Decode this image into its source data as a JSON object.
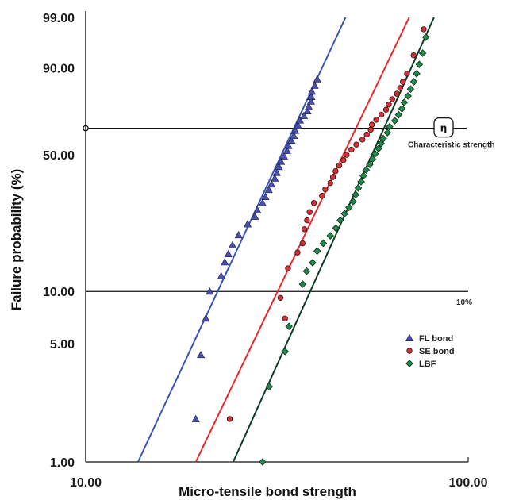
{
  "chart_data": {
    "type": "scatter",
    "title": "",
    "xlabel": "Micro-tensile bond strength",
    "ylabel": "Failure probability (%)",
    "x_scale": "log",
    "y_scale": "weibull",
    "xlim": [
      10,
      100
    ],
    "ylim": [
      1,
      99
    ],
    "x_ticks": [
      "10.00",
      "100.00"
    ],
    "y_ticks": [
      {
        "value": 99,
        "label": "99.00"
      },
      {
        "value": 90,
        "label": "90.00"
      },
      {
        "value": 50,
        "label": "50.00"
      },
      {
        "value": 10,
        "label": "10.00"
      },
      {
        "value": 5,
        "label": "5.00"
      },
      {
        "value": 1,
        "label": "1.00"
      }
    ],
    "reference_lines": [
      {
        "y": 63.2,
        "label": "Characteristic strength",
        "symbol": "η"
      },
      {
        "y": 10,
        "label": "10%"
      },
      {
        "y": 1,
        "label": ""
      }
    ],
    "legend_position": "right",
    "series": [
      {
        "name": "FL bond",
        "marker": "triangle",
        "color": "#4a4fa8",
        "line_color": "#3a56b0",
        "fit": {
          "x": [
            13.7,
            47.8
          ],
          "y": [
            1,
            99
          ]
        },
        "points": [
          [
            19.4,
            1.8
          ],
          [
            20.0,
            4.3
          ],
          [
            20.6,
            7.0
          ],
          [
            21.1,
            10.0
          ],
          [
            22.6,
            12.2
          ],
          [
            23.1,
            14.6
          ],
          [
            23.6,
            16.2
          ],
          [
            24.2,
            18.1
          ],
          [
            25.1,
            20.5
          ],
          [
            26.5,
            23.4
          ],
          [
            27.7,
            25.6
          ],
          [
            28.1,
            27.6
          ],
          [
            29.0,
            30.0
          ],
          [
            29.5,
            32.2
          ],
          [
            30.1,
            34.8
          ],
          [
            30.6,
            37.0
          ],
          [
            31.2,
            39.4
          ],
          [
            31.6,
            41.8
          ],
          [
            32.0,
            44.4
          ],
          [
            32.4,
            46.8
          ],
          [
            33.0,
            49.3
          ],
          [
            33.6,
            52.0
          ],
          [
            33.9,
            54.4
          ],
          [
            34.5,
            57.0
          ],
          [
            35.0,
            59.4
          ],
          [
            35.3,
            62.0
          ],
          [
            35.9,
            64.6
          ],
          [
            36.3,
            67.2
          ],
          [
            37.2,
            69.5
          ],
          [
            38.0,
            71.8
          ],
          [
            38.3,
            74.0
          ],
          [
            38.8,
            76.5
          ],
          [
            38.9,
            78.6
          ],
          [
            39.0,
            81.0
          ],
          [
            39.7,
            83.5
          ],
          [
            40.3,
            86.0
          ]
        ]
      },
      {
        "name": "SE bond",
        "marker": "circle",
        "color": "#d0343a",
        "line_color": "#e8282d",
        "fit": {
          "x": [
            19.4,
            70.1
          ],
          "y": [
            1,
            99
          ]
        },
        "points": [
          [
            23.8,
            1.8
          ],
          [
            32.3,
            9.2
          ],
          [
            33.2,
            7.0
          ],
          [
            33.8,
            13.5
          ],
          [
            35.8,
            16.5
          ],
          [
            36.9,
            18.5
          ],
          [
            37.3,
            22.0
          ],
          [
            37.9,
            24.5
          ],
          [
            38.5,
            27.0
          ],
          [
            39.5,
            30.0
          ],
          [
            41.5,
            32.6
          ],
          [
            42.3,
            35.0
          ],
          [
            43.6,
            37.5
          ],
          [
            44.3,
            40.0
          ],
          [
            45.0,
            42.5
          ],
          [
            46.0,
            45.0
          ],
          [
            47.2,
            47.5
          ],
          [
            48.1,
            50.0
          ],
          [
            49.5,
            52.5
          ],
          [
            51.0,
            55.0
          ],
          [
            52.9,
            57.5
          ],
          [
            54.3,
            60.0
          ],
          [
            55.6,
            62.5
          ],
          [
            56.0,
            65.0
          ],
          [
            57.5,
            67.5
          ],
          [
            59.3,
            70.0
          ],
          [
            61.0,
            72.5
          ],
          [
            62.0,
            75.0
          ],
          [
            63.3,
            77.5
          ],
          [
            65.1,
            80.0
          ],
          [
            66.4,
            82.5
          ],
          [
            67.5,
            85.0
          ],
          [
            69.2,
            88.0
          ],
          [
            72.0,
            93.5
          ],
          [
            76.5,
            98.0
          ]
        ]
      },
      {
        "name": "LBF",
        "marker": "diamond",
        "color": "#1f8a4c",
        "line_color": "#0d3a20",
        "fit": {
          "x": [
            24.3,
            81.4
          ],
          "y": [
            1,
            99
          ]
        },
        "points": [
          [
            29.0,
            1.0
          ],
          [
            30.2,
            2.8
          ],
          [
            33.2,
            4.5
          ],
          [
            34.0,
            6.3
          ],
          [
            36.9,
            11.0
          ],
          [
            37.8,
            13.0
          ],
          [
            39.2,
            14.5
          ],
          [
            40.3,
            16.8
          ],
          [
            41.8,
            18.5
          ],
          [
            43.6,
            20.3
          ],
          [
            45.1,
            22.3
          ],
          [
            46.3,
            24.5
          ],
          [
            47.5,
            26.5
          ],
          [
            48.8,
            28.5
          ],
          [
            50.0,
            30.5
          ],
          [
            50.8,
            33.0
          ],
          [
            51.6,
            35.5
          ],
          [
            52.5,
            38.0
          ],
          [
            53.2,
            40.5
          ],
          [
            54.1,
            43.0
          ],
          [
            55.3,
            45.5
          ],
          [
            56.2,
            48.0
          ],
          [
            57.1,
            50.5
          ],
          [
            58.3,
            53.0
          ],
          [
            59.2,
            55.5
          ],
          [
            60.0,
            58.0
          ],
          [
            61.5,
            61.0
          ],
          [
            62.3,
            64.0
          ],
          [
            64.3,
            67.0
          ],
          [
            65.8,
            70.0
          ],
          [
            67.1,
            73.0
          ],
          [
            68.0,
            76.0
          ],
          [
            69.6,
            79.0
          ],
          [
            70.7,
            82.0
          ],
          [
            72.1,
            85.0
          ],
          [
            73.3,
            88.0
          ],
          [
            74.5,
            91.0
          ],
          [
            76.0,
            94.0
          ],
          [
            77.5,
            97.0
          ]
        ]
      }
    ]
  }
}
